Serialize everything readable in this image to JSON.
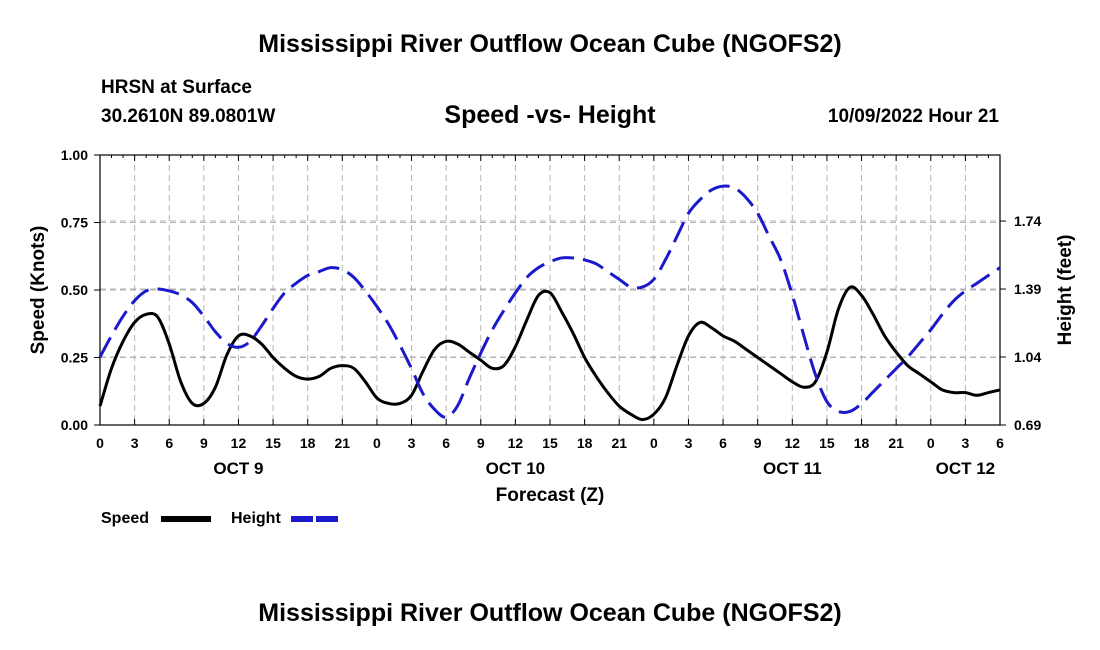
{
  "header": {
    "title": "Mississippi River Outflow Ocean Cube (NGOFS2)",
    "station": "HRSN at Surface",
    "coords": "30.2610N  89.0801W",
    "subtitle": "Speed -vs- Height",
    "datetime": "10/09/2022 Hour 21"
  },
  "footer": {
    "title": "Mississippi River Outflow Ocean Cube (NGOFS2)"
  },
  "legend": {
    "speed_label": "Speed",
    "height_label": "Height"
  },
  "colors": {
    "speed": "#000000",
    "height": "#1a1acc",
    "grid": "#b4b4b4"
  },
  "chart_data": {
    "type": "line",
    "xlabel": "Forecast (Z)",
    "ylabel_left": "Speed (Knots)",
    "ylabel_right": "Height (feet)",
    "x_unit": "hours since Oct 9 00Z",
    "xlim": [
      0,
      78
    ],
    "ylim_left": [
      0,
      1
    ],
    "ylim_right": [
      0.69,
      2.08
    ],
    "x_ticks": [
      0,
      3,
      6,
      9,
      12,
      15,
      18,
      21,
      24,
      27,
      30,
      33,
      36,
      39,
      42,
      45,
      48,
      51,
      54,
      57,
      60,
      63,
      66,
      69,
      72,
      75,
      78
    ],
    "x_tick_labels": [
      "0",
      "3",
      "6",
      "9",
      "12",
      "15",
      "18",
      "21",
      "0",
      "3",
      "6",
      "9",
      "12",
      "15",
      "18",
      "21",
      "0",
      "3",
      "6",
      "9",
      "12",
      "15",
      "18",
      "21",
      "0",
      "3",
      "6"
    ],
    "day_labels": [
      {
        "x": 12,
        "label": "OCT 9"
      },
      {
        "x": 36,
        "label": "OCT 10"
      },
      {
        "x": 60,
        "label": "OCT 11"
      },
      {
        "x": 75,
        "label": "OCT 12"
      }
    ],
    "y_left_ticks": [
      0,
      0.25,
      0.5,
      0.75,
      1.0
    ],
    "y_left_tick_labels": [
      "0.00",
      "0.25",
      "0.50",
      "0.75",
      "1.00"
    ],
    "y_right_ticks": [
      0.69,
      1.04,
      1.39,
      1.74
    ],
    "y_right_tick_labels": [
      "0.69",
      "1.04",
      "1.39",
      "1.74"
    ],
    "series": [
      {
        "name": "Speed",
        "axis": "left",
        "style": "solid",
        "x": [
          0,
          1,
          2,
          3,
          4,
          5,
          6,
          7,
          8,
          9,
          10,
          11,
          12,
          13,
          14,
          15,
          16,
          17,
          18,
          19,
          20,
          21,
          22,
          23,
          24,
          25,
          26,
          27,
          28,
          29,
          30,
          31,
          32,
          33,
          34,
          35,
          36,
          37,
          38,
          39,
          40,
          41,
          42,
          43,
          44,
          45,
          46,
          47,
          48,
          49,
          50,
          51,
          52,
          53,
          54,
          55,
          56,
          57,
          58,
          59,
          60,
          61,
          62,
          63,
          64,
          65,
          66,
          67,
          68,
          69,
          70,
          71,
          72,
          73,
          74,
          75,
          76,
          77,
          78
        ],
        "values": [
          0.07,
          0.21,
          0.31,
          0.38,
          0.41,
          0.4,
          0.3,
          0.16,
          0.08,
          0.08,
          0.14,
          0.26,
          0.33,
          0.33,
          0.3,
          0.25,
          0.21,
          0.18,
          0.17,
          0.18,
          0.21,
          0.22,
          0.21,
          0.16,
          0.1,
          0.08,
          0.08,
          0.11,
          0.2,
          0.28,
          0.31,
          0.3,
          0.27,
          0.24,
          0.21,
          0.22,
          0.29,
          0.39,
          0.48,
          0.49,
          0.42,
          0.34,
          0.25,
          0.18,
          0.12,
          0.07,
          0.04,
          0.02,
          0.04,
          0.1,
          0.22,
          0.33,
          0.38,
          0.36,
          0.33,
          0.31,
          0.28,
          0.25,
          0.22,
          0.19,
          0.16,
          0.14,
          0.16,
          0.27,
          0.43,
          0.51,
          0.48,
          0.41,
          0.33,
          0.27,
          0.22,
          0.19,
          0.16,
          0.13,
          0.12,
          0.12,
          0.11,
          0.12,
          0.13
        ]
      },
      {
        "name": "Height",
        "axis": "right",
        "style": "dashed",
        "x": [
          0,
          1,
          2,
          3,
          4,
          5,
          6,
          7,
          8,
          9,
          10,
          11,
          12,
          13,
          14,
          15,
          16,
          17,
          18,
          19,
          20,
          21,
          22,
          23,
          24,
          25,
          26,
          27,
          28,
          29,
          30,
          31,
          32,
          33,
          34,
          35,
          36,
          37,
          38,
          39,
          40,
          41,
          42,
          43,
          44,
          45,
          46,
          47,
          48,
          49,
          50,
          51,
          52,
          53,
          54,
          55,
          56,
          57,
          58,
          59,
          60,
          61,
          62,
          63,
          64,
          65,
          66,
          67,
          68,
          69,
          70,
          71,
          72,
          73,
          74,
          75,
          76,
          77,
          78
        ],
        "values": [
          1.04,
          1.15,
          1.25,
          1.33,
          1.38,
          1.39,
          1.38,
          1.36,
          1.32,
          1.25,
          1.17,
          1.11,
          1.09,
          1.12,
          1.2,
          1.29,
          1.37,
          1.42,
          1.46,
          1.48,
          1.5,
          1.49,
          1.45,
          1.38,
          1.3,
          1.21,
          1.1,
          0.98,
          0.85,
          0.77,
          0.73,
          0.79,
          0.93,
          1.06,
          1.18,
          1.28,
          1.37,
          1.45,
          1.5,
          1.53,
          1.55,
          1.55,
          1.54,
          1.52,
          1.48,
          1.44,
          1.4,
          1.4,
          1.44,
          1.54,
          1.66,
          1.78,
          1.85,
          1.9,
          1.92,
          1.91,
          1.86,
          1.78,
          1.66,
          1.54,
          1.36,
          1.15,
          0.95,
          0.81,
          0.76,
          0.76,
          0.8,
          0.86,
          0.92,
          0.98,
          1.04,
          1.11,
          1.18,
          1.26,
          1.33,
          1.38,
          1.42,
          1.46,
          1.5
        ]
      }
    ]
  }
}
